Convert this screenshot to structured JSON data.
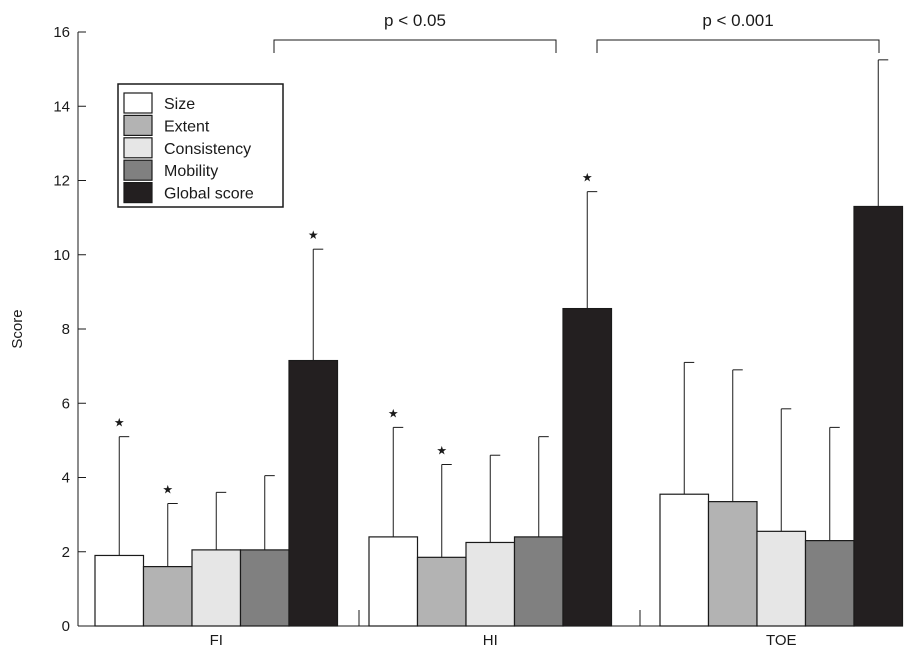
{
  "chart_data": {
    "type": "bar",
    "ylabel": "Score",
    "ylim": [
      0,
      16
    ],
    "yticks": [
      "0",
      "2",
      "4",
      "6",
      "8",
      "10",
      "12",
      "14",
      "16"
    ],
    "categories": [
      "FI",
      "HI",
      "TOE"
    ],
    "legend_position": "top-left",
    "series": [
      {
        "name": "Size",
        "color": "#ffffff",
        "values": [
          1.9,
          2.4,
          3.55
        ],
        "error": [
          3.2,
          2.95,
          3.55
        ],
        "starred": [
          true,
          true,
          false
        ]
      },
      {
        "name": "Extent",
        "color": "#b3b3b3",
        "values": [
          1.6,
          1.85,
          3.35
        ],
        "error": [
          1.7,
          2.5,
          3.55
        ],
        "starred": [
          true,
          true,
          false
        ]
      },
      {
        "name": "Consistency",
        "color": "#e6e6e6",
        "values": [
          2.05,
          2.25,
          2.55
        ],
        "error": [
          1.55,
          2.35,
          3.3
        ],
        "starred": [
          false,
          false,
          false
        ]
      },
      {
        "name": "Mobility",
        "color": "#808080",
        "values": [
          2.05,
          2.4,
          2.3
        ],
        "error": [
          2.0,
          2.7,
          3.05
        ],
        "starred": [
          false,
          false,
          false
        ]
      },
      {
        "name": "Global score",
        "color": "#231f20",
        "values": [
          7.15,
          8.55,
          11.3
        ],
        "error": [
          3.0,
          3.15,
          3.95
        ],
        "starred": [
          true,
          true,
          false
        ]
      }
    ],
    "marker": "★",
    "comparisons": [
      {
        "label": "p < 0.05"
      },
      {
        "label": "p < 0.001"
      }
    ]
  }
}
